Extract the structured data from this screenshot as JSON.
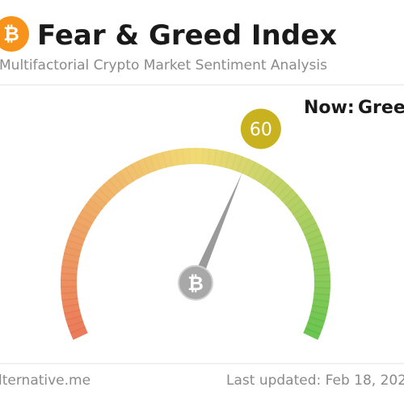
{
  "chart_data": {
    "type": "gauge",
    "title": "Fear & Greed Index",
    "subtitle": "Multifactorial Crypto Market Sentiment Analysis",
    "now_label": "Now:",
    "classification": "Gree",
    "value": 60,
    "ylim": [
      0,
      100
    ],
    "color": "#c9b21f",
    "source": "lternative.me",
    "updated": "Last updated: Feb 18, 202"
  }
}
